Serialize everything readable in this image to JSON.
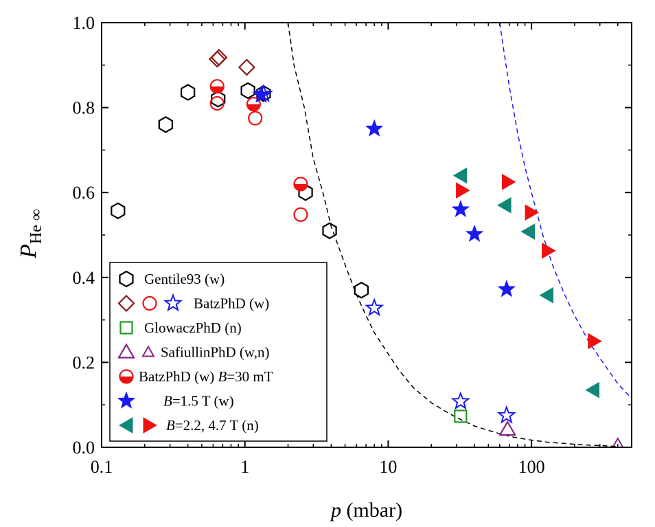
{
  "chart_data": {
    "type": "scatter",
    "xlabel_pre": "",
    "xlabel_var": "p",
    "xlabel_post": " (mbar)",
    "ylabel_var": "P",
    "ylabel_sub": "He ∞",
    "xscale": "log",
    "xlim": [
      0.1,
      500
    ],
    "ylim": [
      0.0,
      1.0
    ],
    "xticks": [
      0.1,
      1,
      10,
      100
    ],
    "xtick_labels": [
      "0.1",
      "1",
      "10",
      "100"
    ],
    "yticks": [
      0.0,
      0.2,
      0.4,
      0.6,
      0.8,
      1.0
    ],
    "ytick_labels": [
      "0.0",
      "0.2",
      "0.4",
      "0.6",
      "0.8",
      "1.0"
    ],
    "legend_position": "bottom-left",
    "colors": {
      "black": "#000000",
      "darkred": "#8b1a1a",
      "red": "#ee1111",
      "blue": "#1a1aee",
      "green": "#229922",
      "purple": "#882288",
      "teal": "#118877"
    },
    "legend": [
      {
        "label": "Gentile93 (w)",
        "label_html": [
          {
            "t": "Gentile93 (w)",
            "i": false
          }
        ],
        "markers": [
          "hex-open-black"
        ]
      },
      {
        "label": "BatzPhD (w)",
        "label_html": [
          {
            "t": "BatzPhD (w)",
            "i": false
          }
        ],
        "markers": [
          "diamond-open-darkred",
          "circle-open-red",
          "star-open-blue"
        ]
      },
      {
        "label": "GlowaczPhD (n)",
        "label_html": [
          {
            "t": "GlowaczPhD (n)",
            "i": false
          }
        ],
        "markers": [
          "square-open-green"
        ]
      },
      {
        "label": "SafiullinPhD (w,n)",
        "label_html": [
          {
            "t": "SafiullinPhD (w,n)",
            "i": false
          }
        ],
        "markers": [
          "triangle-open-purple-big",
          "triangle-open-purple-small"
        ]
      },
      {
        "label": "BatzPhD (w) B=30 mT",
        "label_html": [
          {
            "t": "BatzPhD (w) ",
            "i": false
          },
          {
            "t": "B",
            "i": true
          },
          {
            "t": "=30 mT",
            "i": false
          }
        ],
        "markers": [
          "circle-half-red"
        ]
      },
      {
        "label": "B=1.5 T (w)",
        "label_html": [
          {
            "t": "B",
            "i": true
          },
          {
            "t": "=1.5 T (w)",
            "i": false
          }
        ],
        "markers": [
          "star-filled-blue"
        ]
      },
      {
        "label": "B=2.2, 4.7 T (n)",
        "label_html": [
          {
            "t": "B",
            "i": true
          },
          {
            "t": "=2.2, 4.7 T (n)",
            "i": false
          }
        ],
        "markers": [
          "tri-left-teal",
          "tri-right-red"
        ]
      }
    ],
    "series": [
      {
        "name": "Gentile93 (w)",
        "marker": "hex-open-black",
        "points": [
          [
            0.13,
            0.557
          ],
          [
            0.28,
            0.76
          ],
          [
            0.4,
            0.836
          ],
          [
            0.65,
            0.82
          ],
          [
            1.05,
            0.84
          ],
          [
            1.35,
            0.833
          ],
          [
            2.65,
            0.6
          ],
          [
            3.9,
            0.51
          ],
          [
            6.5,
            0.37
          ]
        ]
      },
      {
        "name": "BatzPhD (w)",
        "marker": "diamond-open-darkred",
        "points": [
          [
            0.64,
            0.914
          ],
          [
            0.66,
            0.918
          ],
          [
            1.03,
            0.895
          ]
        ]
      },
      {
        "name": "BatzPhD (w)",
        "marker": "circle-open-red",
        "points": [
          [
            0.64,
            0.81
          ],
          [
            1.18,
            0.775
          ],
          [
            2.45,
            0.548
          ]
        ]
      },
      {
        "name": "BatzPhD (w)",
        "marker": "star-open-blue",
        "points": [
          [
            1.35,
            0.832
          ],
          [
            8.0,
            0.328
          ],
          [
            32,
            0.108
          ],
          [
            67,
            0.075
          ]
        ]
      },
      {
        "name": "GlowaczPhD (n)",
        "marker": "square-open-green",
        "points": [
          [
            32,
            0.073
          ]
        ]
      },
      {
        "name": "SafiullinPhD (w,n)",
        "marker": "triangle-open-purple-big",
        "points": [
          [
            68,
            0.042
          ]
        ]
      },
      {
        "name": "SafiullinPhD (w,n)",
        "marker": "triangle-open-purple-small",
        "points": [
          [
            400,
            0.008
          ]
        ]
      },
      {
        "name": "BatzPhD (w) B=30 mT",
        "marker": "circle-half-red",
        "points": [
          [
            0.64,
            0.85
          ],
          [
            1.15,
            0.808
          ],
          [
            2.45,
            0.62
          ]
        ]
      },
      {
        "name": "B=1.5 T (w)",
        "marker": "star-filled-blue",
        "points": [
          [
            1.3,
            0.83
          ],
          [
            8.0,
            0.75
          ],
          [
            32,
            0.56
          ],
          [
            40,
            0.502
          ],
          [
            67,
            0.372
          ]
        ]
      },
      {
        "name": "B=2.2 T (n)",
        "marker": "tri-left-teal",
        "points": [
          [
            32,
            0.64
          ],
          [
            65,
            0.57
          ],
          [
            95,
            0.508
          ],
          [
            128,
            0.358
          ],
          [
            268,
            0.135
          ]
        ]
      },
      {
        "name": "B=4.7 T (n)",
        "marker": "tri-right-red",
        "points": [
          [
            33,
            0.605
          ],
          [
            69,
            0.625
          ],
          [
            100,
            0.553
          ],
          [
            131,
            0.463
          ],
          [
            275,
            0.25
          ]
        ]
      }
    ],
    "curves": [
      {
        "style": "dashed",
        "color": "#000000",
        "x": [
          2.0,
          2.2,
          2.6,
          3.0,
          3.5,
          4.0,
          5.0,
          6.0,
          7.0,
          8.0,
          10,
          12,
          15,
          20,
          25,
          30,
          40,
          50,
          60,
          70,
          80,
          100,
          130,
          170,
          220,
          300,
          400
        ],
        "y": [
          1.0,
          0.9,
          0.8,
          0.68,
          0.6,
          0.52,
          0.43,
          0.36,
          0.31,
          0.27,
          0.22,
          0.18,
          0.14,
          0.105,
          0.085,
          0.07,
          0.05,
          0.04,
          0.032,
          0.026,
          0.022,
          0.017,
          0.012,
          0.009,
          0.006,
          0.004,
          0.002
        ]
      },
      {
        "style": "dashed",
        "color": "#1a1aee",
        "x": [
          60,
          65,
          70,
          80,
          90,
          100,
          120,
          140,
          170,
          200,
          250,
          300,
          400,
          500
        ],
        "y": [
          1.0,
          0.92,
          0.85,
          0.74,
          0.66,
          0.6,
          0.5,
          0.43,
          0.36,
          0.31,
          0.25,
          0.21,
          0.15,
          0.115
        ]
      }
    ]
  }
}
